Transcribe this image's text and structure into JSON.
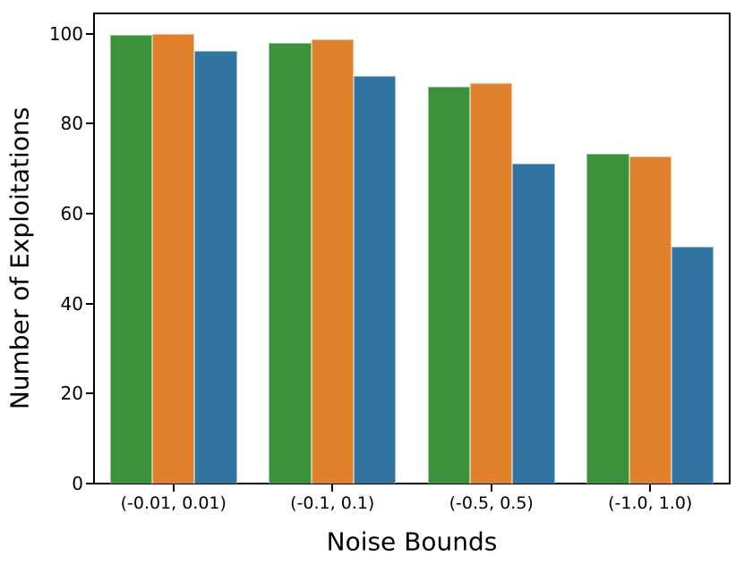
{
  "figure": {
    "background": "#ffffff",
    "spine_color": "#000000",
    "text_color": "#000000"
  },
  "chart_data": {
    "type": "bar",
    "title": "",
    "xlabel": "Noise Bounds",
    "ylabel": "Number of Exploitations",
    "categories": [
      "(-0.01, 0.01)",
      "(-0.1, 0.1)",
      "(-0.5, 0.5)",
      "(-1.0, 1.0)"
    ],
    "series": [
      {
        "name": "green",
        "color": "#3a923a",
        "values": [
          99.8,
          98.0,
          88.2,
          73.4
        ]
      },
      {
        "name": "orange",
        "color": "#e1812c",
        "values": [
          100.0,
          98.8,
          89.0,
          72.8
        ]
      },
      {
        "name": "blue",
        "color": "#3274a1",
        "values": [
          96.2,
          90.5,
          71.2,
          52.7
        ]
      }
    ],
    "ylim": [
      0,
      104.5
    ],
    "y_ticks": [
      0,
      20,
      40,
      60,
      80,
      100
    ],
    "bar_group_width_fraction": 0.8,
    "grid": false,
    "legend_visible": false
  }
}
